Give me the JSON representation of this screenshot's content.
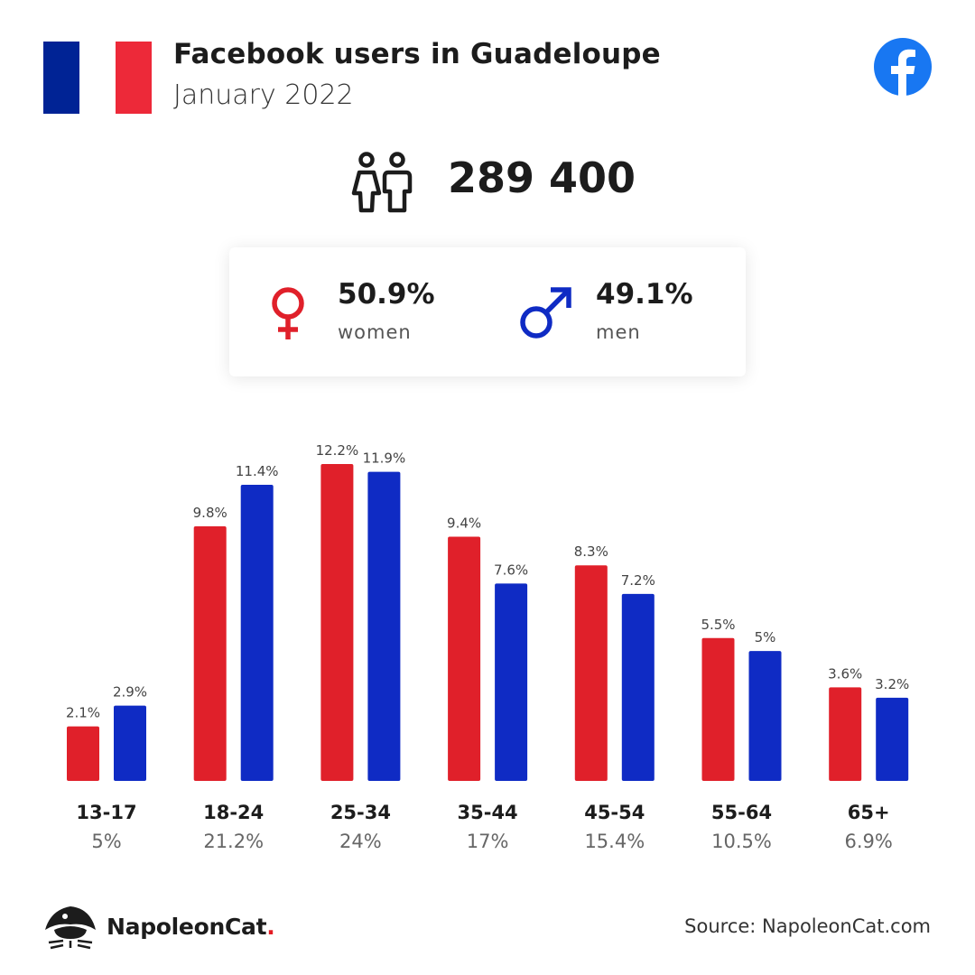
{
  "header": {
    "title": "Facebook users in Guadeloupe",
    "subtitle": "January 2022",
    "flag_colors": [
      "#002395",
      "#ffffff",
      "#ed2939"
    ],
    "brand_icon": "facebook-logo-icon",
    "brand_color": "#1877f2"
  },
  "total": {
    "icon": "people-icon",
    "value": "289 400"
  },
  "gender": {
    "women": {
      "icon": "female-symbol-icon",
      "value": "50.9%",
      "label": "women",
      "color": "#e0202a"
    },
    "men": {
      "icon": "male-symbol-icon",
      "value": "49.1%",
      "label": "men",
      "color": "#0f2bc4"
    }
  },
  "chart_data": {
    "type": "bar",
    "categories": [
      "13-17",
      "18-24",
      "25-34",
      "35-44",
      "45-54",
      "55-64",
      "65+"
    ],
    "category_totals": [
      "5%",
      "21.2%",
      "24%",
      "17%",
      "15.4%",
      "10.5%",
      "6.9%"
    ],
    "series": [
      {
        "color": "#e0202a",
        "values": [
          2.1,
          9.8,
          12.2,
          9.4,
          8.3,
          5.5,
          3.6
        ],
        "labels": [
          "2.1%",
          "9.8%",
          "12.2%",
          "9.4%",
          "8.3%",
          "5.5%",
          "3.6%"
        ]
      },
      {
        "color": "#0f2bc4",
        "values": [
          2.9,
          11.4,
          11.9,
          7.6,
          7.2,
          5.0,
          3.2
        ],
        "labels": [
          "2.9%",
          "11.4%",
          "11.9%",
          "7.6%",
          "7.2%",
          "5%",
          "3.2%"
        ]
      }
    ],
    "ylim": [
      0,
      12.2
    ],
    "grid": false,
    "title": "",
    "xlabel": "",
    "ylabel": ""
  },
  "footer": {
    "brand_icon": "napoleoncat-logo-icon",
    "brand_name": "NapoleonCat",
    "brand_dot": ".",
    "source": "Source: NapoleonCat.com"
  }
}
